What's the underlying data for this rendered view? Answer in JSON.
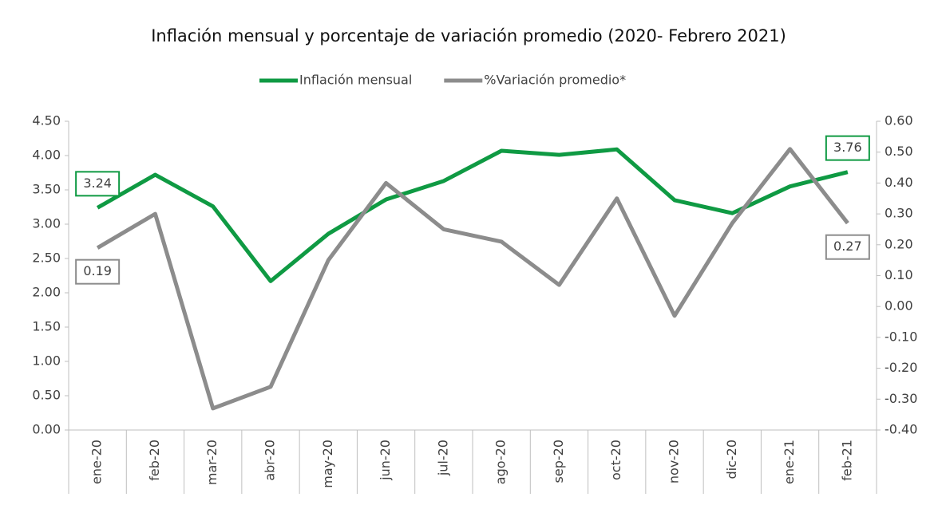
{
  "chart_data": {
    "type": "line",
    "title": "Inflación mensual y porcentaje de variación promedio (2020- Febrero 2021)",
    "categories": [
      "ene-20",
      "feb-20",
      "mar-20",
      "abr-20",
      "may-20",
      "jun-20",
      "jul-20",
      "ago-20",
      "sep-20",
      "oct-20",
      "nov-20",
      "dic-20",
      "ene-21",
      "feb-21"
    ],
    "series": [
      {
        "name": "Inflación mensual",
        "color": "#0f9a43",
        "axis": "y",
        "values": [
          3.24,
          3.72,
          3.26,
          2.17,
          2.86,
          3.36,
          3.63,
          4.07,
          4.01,
          4.09,
          3.35,
          3.16,
          3.55,
          3.76
        ],
        "value_labels": [
          "3.24",
          null,
          null,
          null,
          null,
          null,
          null,
          null,
          null,
          null,
          null,
          null,
          null,
          "3.76"
        ]
      },
      {
        "name": "%Variación promedio*",
        "color": "#8c8c8c",
        "axis": "y2",
        "values": [
          0.19,
          0.3,
          -0.33,
          -0.26,
          0.15,
          0.4,
          0.25,
          0.21,
          0.07,
          0.35,
          -0.03,
          0.27,
          0.51,
          0.27
        ],
        "value_labels": [
          "0.19",
          null,
          null,
          null,
          null,
          null,
          null,
          null,
          null,
          null,
          null,
          null,
          null,
          "0.27"
        ]
      }
    ],
    "ylim": [
      0,
      4.5
    ],
    "yticks": [
      {
        "value": 0,
        "label": "0.00"
      },
      {
        "value": 0.5,
        "label": "0.50"
      },
      {
        "value": 1,
        "label": "1.00"
      },
      {
        "value": 1.5,
        "label": "1.50"
      },
      {
        "value": 2,
        "label": "2.00"
      },
      {
        "value": 2.5,
        "label": "2.50"
      },
      {
        "value": 3,
        "label": "3.00"
      },
      {
        "value": 3.5,
        "label": "3.50"
      },
      {
        "value": 4,
        "label": "4.00"
      },
      {
        "value": 4.5,
        "label": "4.50"
      }
    ],
    "y2lim": [
      -0.4,
      0.6
    ],
    "y2ticks": [
      {
        "value": -0.4,
        "label": "-0.40"
      },
      {
        "value": -0.3,
        "label": "-0.30"
      },
      {
        "value": -0.2,
        "label": "-0.20"
      },
      {
        "value": -0.1,
        "label": "-0.10"
      },
      {
        "value": 0,
        "label": "0.00"
      },
      {
        "value": 0.1,
        "label": "0.10"
      },
      {
        "value": 0.2,
        "label": "0.20"
      },
      {
        "value": 0.3,
        "label": "0.30"
      },
      {
        "value": 0.4,
        "label": "0.40"
      },
      {
        "value": 0.5,
        "label": "0.50"
      },
      {
        "value": 0.6,
        "label": "0.60"
      }
    ],
    "legend": "top"
  }
}
